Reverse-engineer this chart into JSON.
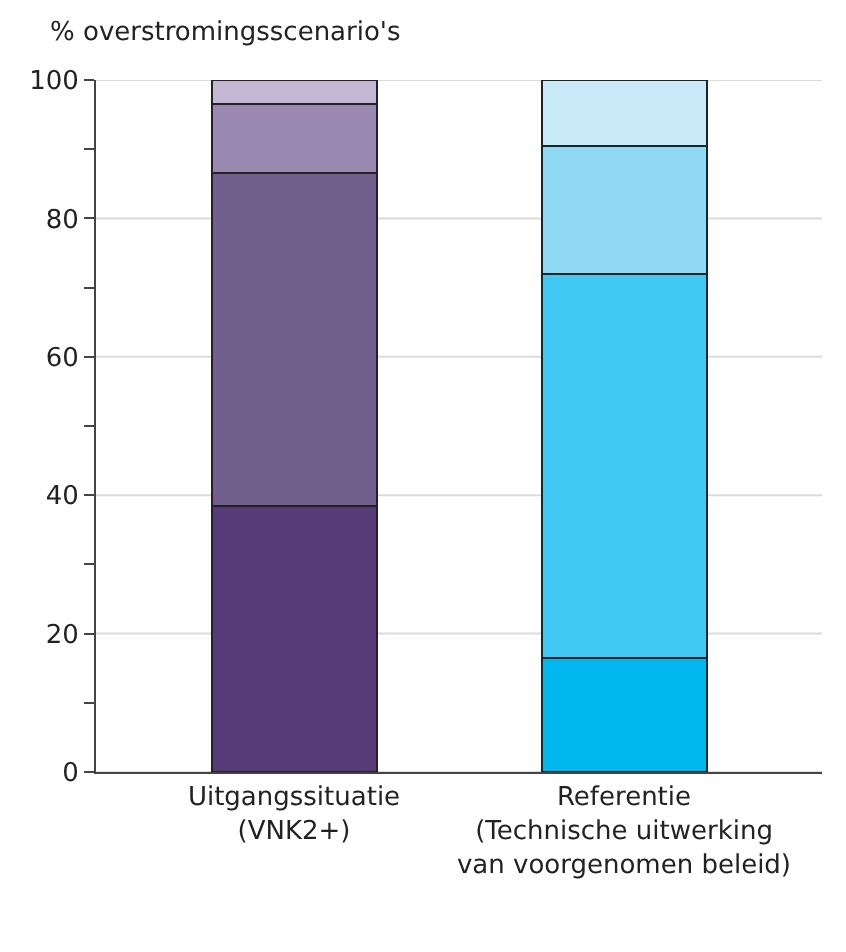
{
  "chart_data": {
    "type": "bar",
    "stacked": true,
    "ylabel": "% overstromingsscenario's",
    "categories": [
      "Uitgangssituatie\n(VNK2+)",
      "Referentie\n(Technische uitwerking\nvan voorgenomen beleid)"
    ],
    "series": [
      {
        "colors": [
          "#573a78",
          "#00b8ee"
        ],
        "values": [
          38.5,
          16.5
        ]
      },
      {
        "colors": [
          "#735f8e",
          "#41c8f3"
        ],
        "values": [
          48,
          55.5
        ]
      },
      {
        "colors": [
          "#9a88b0",
          "#90d9f5"
        ],
        "values": [
          10,
          18.5
        ]
      },
      {
        "colors": [
          "#c4b8d5",
          "#c9eaf9"
        ],
        "values": [
          3.5,
          9.5
        ]
      }
    ],
    "ylim": [
      0,
      100
    ],
    "yticks": [
      0,
      {
        "value": 10,
        "label": null
      },
      20,
      {
        "value": 30,
        "label": null
      },
      40,
      {
        "value": 50,
        "label": null
      },
      60,
      {
        "value": 70,
        "label": null
      },
      80,
      {
        "value": 90,
        "label": null
      },
      100
    ],
    "grid": "y"
  }
}
